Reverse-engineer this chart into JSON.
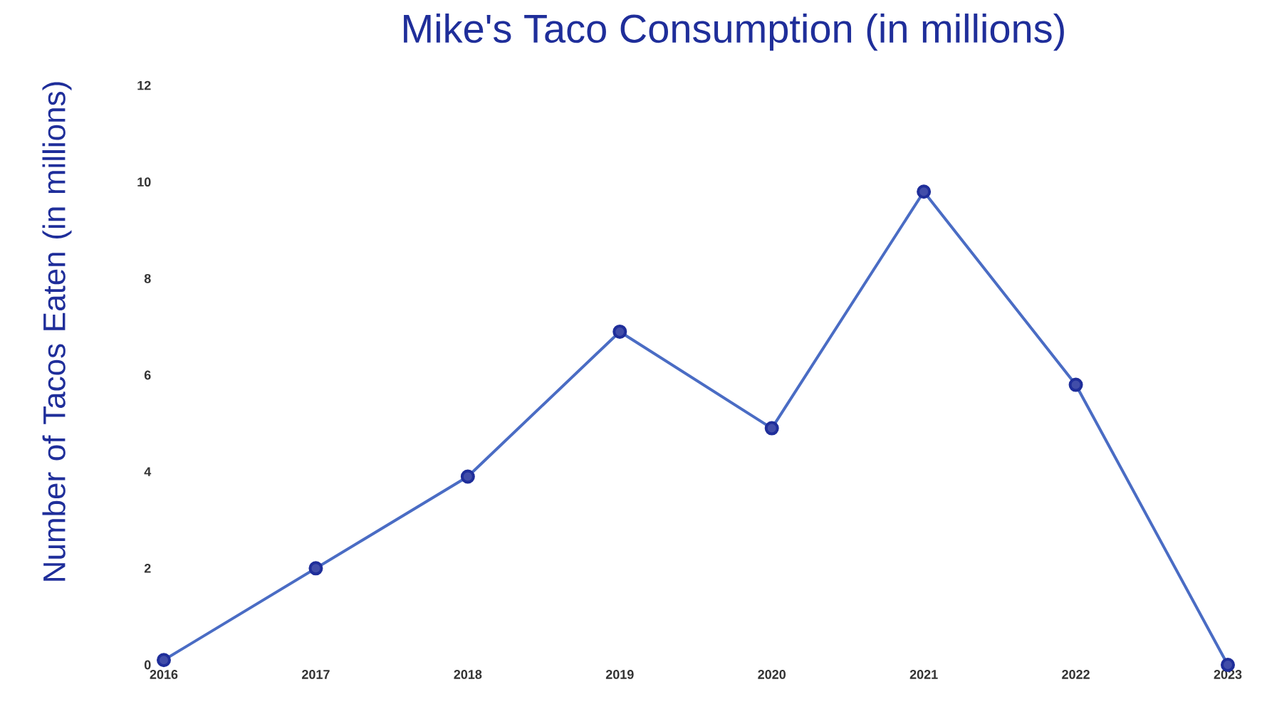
{
  "chart_data": {
    "type": "line",
    "title": "Mike's Taco Consumption (in millions)",
    "ylabel": "Number of Tacos Eaten (in millions)",
    "categories": [
      "2016",
      "2017",
      "2018",
      "2019",
      "2020",
      "2021",
      "2022",
      "2023"
    ],
    "series": [
      {
        "color": "#4a6cc4",
        "values": [
          0.1,
          2,
          3.9,
          6.9,
          4.9,
          9.8,
          5.8,
          0
        ]
      }
    ],
    "ylim": [
      0,
      12
    ],
    "yticks": [
      0,
      2,
      4,
      6,
      8,
      10,
      12
    ],
    "marker": "circle"
  }
}
